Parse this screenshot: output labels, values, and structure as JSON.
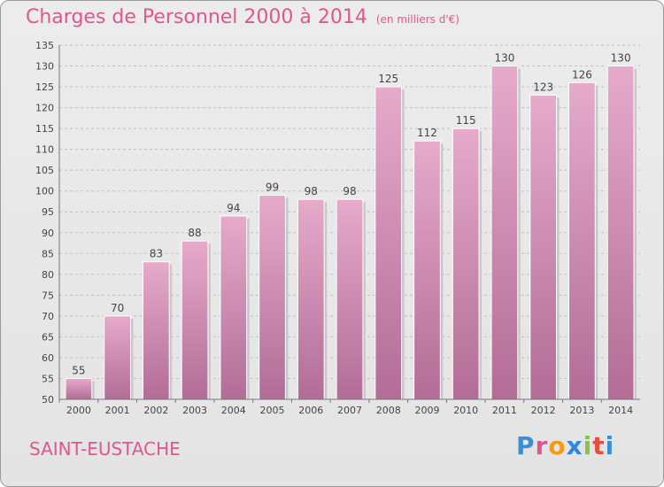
{
  "header": {
    "title": "Charges de Personnel 2000 à 2014",
    "subtitle": "(en milliers d'€)"
  },
  "footer": {
    "commune": "SAINT-EUSTACHE",
    "logo_text": "Proxiti"
  },
  "colors": {
    "title": "#e0568f",
    "bar_top": "#e6aacb",
    "bar_bottom": "#b26d96",
    "grid": "#bfbfbf"
  },
  "chart_data": {
    "type": "bar",
    "categories": [
      "2000",
      "2001",
      "2002",
      "2003",
      "2004",
      "2005",
      "2006",
      "2007",
      "2008",
      "2009",
      "2010",
      "2011",
      "2012",
      "2013",
      "2014"
    ],
    "values": [
      55,
      70,
      83,
      88,
      94,
      99,
      98,
      98,
      125,
      112,
      115,
      130,
      123,
      126,
      130
    ],
    "ylim": [
      50,
      135
    ],
    "yticks": [
      50,
      55,
      60,
      65,
      70,
      75,
      80,
      85,
      90,
      95,
      100,
      105,
      110,
      115,
      120,
      125,
      130,
      135
    ],
    "grid": true
  }
}
